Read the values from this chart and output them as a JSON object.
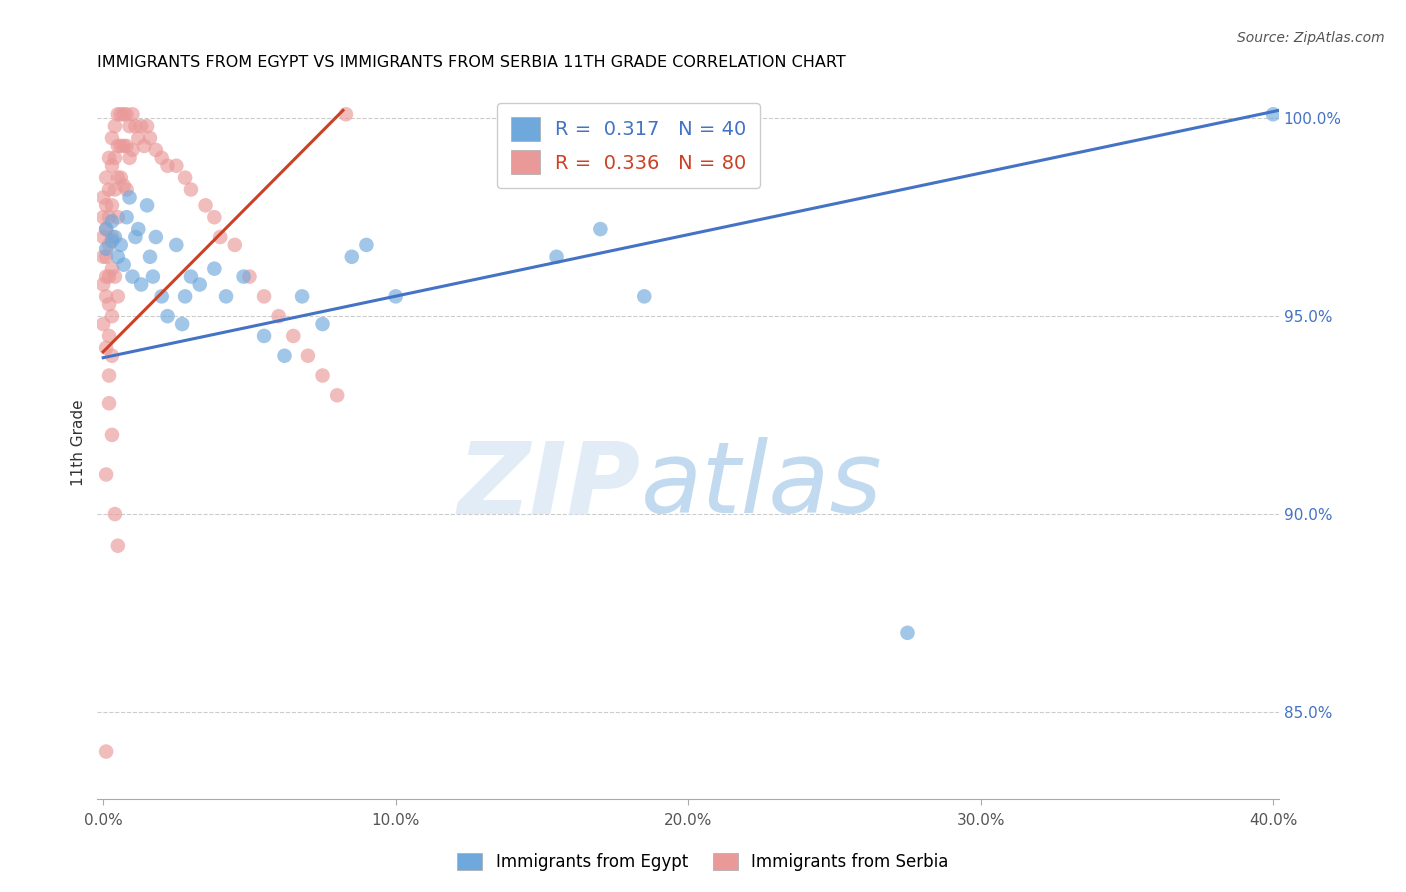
{
  "title": "IMMIGRANTS FROM EGYPT VS IMMIGRANTS FROM SERBIA 11TH GRADE CORRELATION CHART",
  "source": "Source: ZipAtlas.com",
  "ylabel": "11th Grade",
  "xlabel_ticks": [
    "0.0%",
    "",
    "10.0%",
    "",
    "20.0%",
    "",
    "30.0%",
    "",
    "40.0%"
  ],
  "xlabel_vals": [
    0.0,
    0.05,
    0.1,
    0.15,
    0.2,
    0.25,
    0.3,
    0.35,
    0.4
  ],
  "xlabel_major_ticks": [
    0.0,
    0.1,
    0.2,
    0.3,
    0.4
  ],
  "xlabel_major_labels": [
    "0.0%",
    "10.0%",
    "20.0%",
    "30.0%",
    "40.0%"
  ],
  "ylabel_ticks": [
    "85.0%",
    "90.0%",
    "95.0%",
    "100.0%"
  ],
  "ylabel_vals": [
    0.85,
    0.9,
    0.95,
    1.0
  ],
  "xlim": [
    -0.002,
    0.402
  ],
  "ylim": [
    0.828,
    1.008
  ],
  "egypt_color": "#6fa8dc",
  "serbia_color": "#ea9999",
  "egypt_line_color": "#4472c4",
  "serbia_line_color": "#cc4125",
  "egypt_R": 0.317,
  "egypt_N": 40,
  "serbia_R": 0.336,
  "serbia_N": 80,
  "egypt_line_x": [
    0.0,
    0.402
  ],
  "egypt_line_y": [
    0.9395,
    1.002
  ],
  "serbia_line_x": [
    0.0,
    0.082
  ],
  "serbia_line_y": [
    0.941,
    1.002
  ],
  "egypt_scatter_x": [
    0.001,
    0.001,
    0.003,
    0.003,
    0.004,
    0.005,
    0.006,
    0.007,
    0.008,
    0.009,
    0.01,
    0.011,
    0.012,
    0.013,
    0.015,
    0.016,
    0.017,
    0.018,
    0.02,
    0.022,
    0.025,
    0.027,
    0.028,
    0.03,
    0.033,
    0.038,
    0.042,
    0.048,
    0.055,
    0.062,
    0.068,
    0.075,
    0.085,
    0.09,
    0.1,
    0.155,
    0.17,
    0.185,
    0.275,
    0.4
  ],
  "egypt_scatter_y": [
    0.967,
    0.972,
    0.974,
    0.969,
    0.97,
    0.965,
    0.968,
    0.963,
    0.975,
    0.98,
    0.96,
    0.97,
    0.972,
    0.958,
    0.978,
    0.965,
    0.96,
    0.97,
    0.955,
    0.95,
    0.968,
    0.948,
    0.955,
    0.96,
    0.958,
    0.962,
    0.955,
    0.96,
    0.945,
    0.94,
    0.955,
    0.948,
    0.965,
    0.968,
    0.955,
    0.965,
    0.972,
    0.955,
    0.87,
    1.001
  ],
  "serbia_scatter_x": [
    0.0,
    0.0,
    0.0,
    0.0,
    0.0,
    0.001,
    0.001,
    0.001,
    0.001,
    0.001,
    0.002,
    0.002,
    0.002,
    0.002,
    0.002,
    0.002,
    0.003,
    0.003,
    0.003,
    0.003,
    0.003,
    0.004,
    0.004,
    0.004,
    0.005,
    0.005,
    0.005,
    0.005,
    0.006,
    0.006,
    0.006,
    0.007,
    0.007,
    0.007,
    0.008,
    0.008,
    0.008,
    0.009,
    0.009,
    0.01,
    0.01,
    0.011,
    0.012,
    0.013,
    0.014,
    0.015,
    0.016,
    0.018,
    0.02,
    0.022,
    0.025,
    0.028,
    0.03,
    0.035,
    0.038,
    0.04,
    0.045,
    0.05,
    0.055,
    0.06,
    0.065,
    0.07,
    0.075,
    0.08,
    0.0,
    0.001,
    0.002,
    0.003,
    0.004,
    0.005,
    0.001,
    0.002,
    0.003,
    0.002,
    0.003,
    0.001,
    0.004,
    0.005,
    0.001,
    0.083
  ],
  "serbia_scatter_y": [
    0.98,
    0.975,
    0.97,
    0.965,
    0.958,
    0.985,
    0.978,
    0.972,
    0.965,
    0.96,
    0.99,
    0.982,
    0.975,
    0.968,
    0.96,
    0.953,
    0.995,
    0.988,
    0.978,
    0.97,
    0.962,
    0.998,
    0.99,
    0.982,
    1.001,
    0.993,
    0.985,
    0.975,
    1.001,
    0.993,
    0.985,
    1.001,
    0.993,
    0.983,
    1.001,
    0.993,
    0.982,
    0.998,
    0.99,
    1.001,
    0.992,
    0.998,
    0.995,
    0.998,
    0.993,
    0.998,
    0.995,
    0.992,
    0.99,
    0.988,
    0.988,
    0.985,
    0.982,
    0.978,
    0.975,
    0.97,
    0.968,
    0.96,
    0.955,
    0.95,
    0.945,
    0.94,
    0.935,
    0.93,
    0.948,
    0.955,
    0.945,
    0.95,
    0.96,
    0.955,
    0.942,
    0.935,
    0.94,
    0.928,
    0.92,
    0.91,
    0.9,
    0.892,
    0.84,
    1.001
  ]
}
